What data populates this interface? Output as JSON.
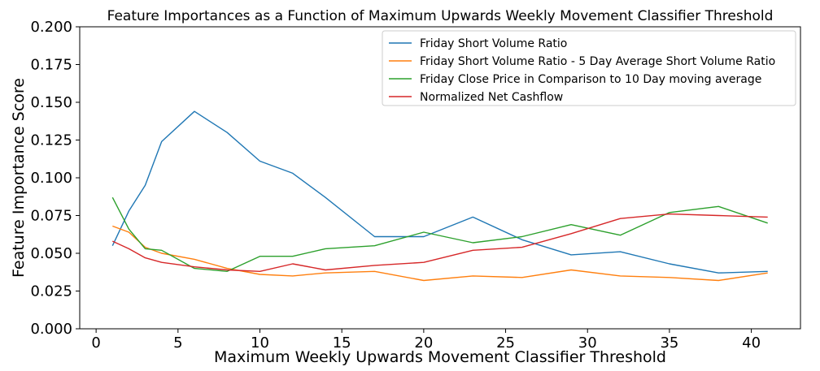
{
  "chart_data": {
    "type": "line",
    "title": "Feature Importances as a Function of Maximum Upwards Weekly Movement Classifier Threshold",
    "xlabel": "Maximum Weekly Upwards Movement Classifier Threshold",
    "ylabel": "Feature Importance Score",
    "xlim": [
      -1,
      43
    ],
    "ylim": [
      0.0,
      0.2
    ],
    "xticks": [
      0,
      5,
      10,
      15,
      20,
      25,
      30,
      35,
      40
    ],
    "xtick_labels": [
      "0",
      "5",
      "10",
      "15",
      "20",
      "25",
      "30",
      "35",
      "40"
    ],
    "yticks": [
      0.0,
      0.025,
      0.05,
      0.075,
      0.1,
      0.125,
      0.15,
      0.175,
      0.2
    ],
    "ytick_labels": [
      "0.000",
      "0.025",
      "0.050",
      "0.075",
      "0.100",
      "0.125",
      "0.150",
      "0.175",
      "0.200"
    ],
    "grid": false,
    "legend_position": "top-right",
    "x": [
      1,
      2,
      3,
      4,
      6,
      8,
      10,
      12,
      14,
      17,
      20,
      23,
      26,
      29,
      32,
      35,
      38,
      41
    ],
    "series": [
      {
        "name": "Friday Short Volume Ratio",
        "color": "#1f77b4",
        "values": [
          0.055,
          0.078,
          0.095,
          0.124,
          0.144,
          0.13,
          0.111,
          0.103,
          0.087,
          0.061,
          0.061,
          0.074,
          0.059,
          0.049,
          0.051,
          0.043,
          0.037,
          0.038
        ]
      },
      {
        "name": "Friday Short Volume Ratio  - 5 Day Average Short Volume Ratio",
        "color": "#ff7f0e",
        "values": [
          0.068,
          0.064,
          0.054,
          0.05,
          0.046,
          0.04,
          0.036,
          0.035,
          0.037,
          0.038,
          0.032,
          0.035,
          0.034,
          0.039,
          0.035,
          0.034,
          0.032,
          0.037
        ]
      },
      {
        "name": "Friday Close Price in Comparison to 10 Day moving average",
        "color": "#2ca02c",
        "values": [
          0.087,
          0.066,
          0.053,
          0.052,
          0.04,
          0.038,
          0.048,
          0.048,
          0.053,
          0.055,
          0.064,
          0.057,
          0.061,
          0.069,
          0.062,
          0.077,
          0.081,
          0.07
        ]
      },
      {
        "name": "Normalized Net Cashflow",
        "color": "#d62728",
        "values": [
          0.058,
          0.053,
          0.047,
          0.044,
          0.041,
          0.039,
          0.038,
          0.043,
          0.039,
          0.042,
          0.044,
          0.052,
          0.054,
          0.063,
          0.073,
          0.076,
          0.075,
          0.074
        ]
      }
    ]
  }
}
